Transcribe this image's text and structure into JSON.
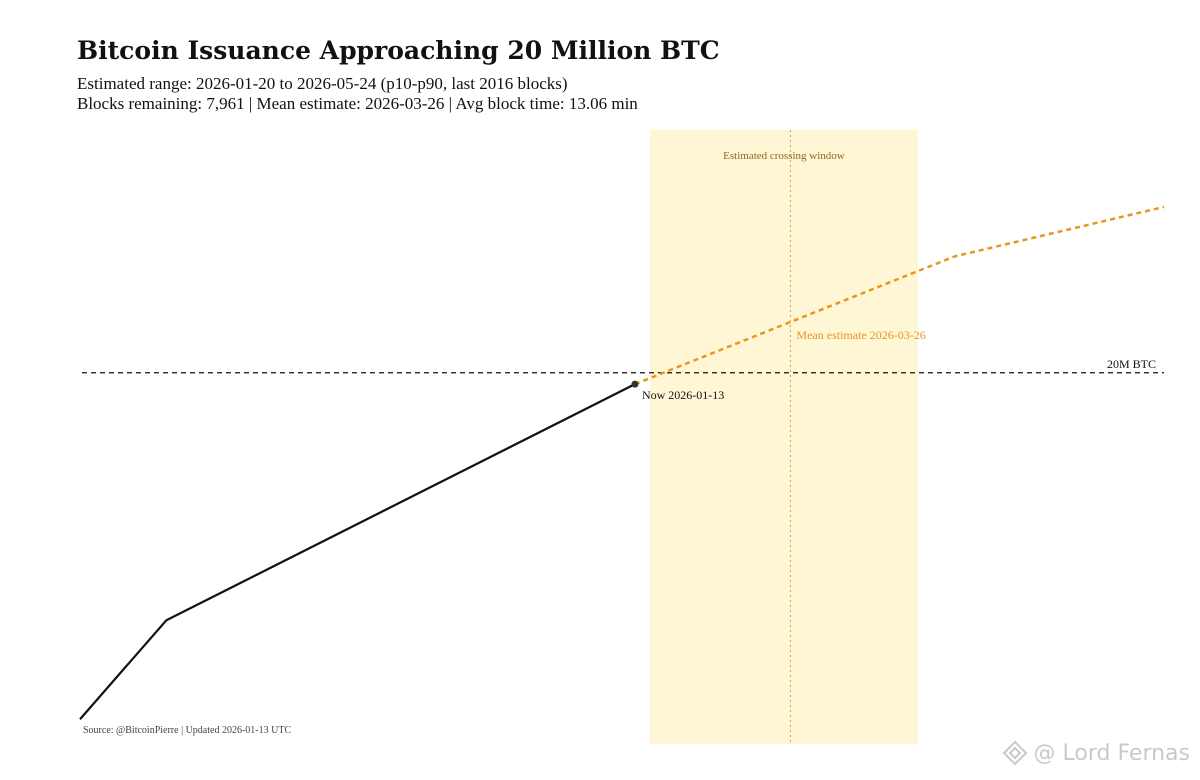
{
  "title": "Bitcoin Issuance Approaching 20 Million BTC",
  "subtitle_1": "Estimated range: 2026-01-20 to 2026-05-24 (p10-p90, last 2016 blocks)",
  "subtitle_2": "Blocks remaining: 7,961 | Mean estimate: 2026-03-26 | Avg block time: 13.06 min",
  "source": "Source: @BitcoinPierre | Updated 2026-01-13 UTC",
  "watermark": "@ Lord Fernas",
  "colors": {
    "history": "#111111",
    "projection": "#e8961c",
    "window_fill": "#fff6d6",
    "window_line": "#e0a84a",
    "threshold": "#111111",
    "window_label": "#8a6a1a",
    "mean_label": "#e8961c"
  },
  "chart_data": {
    "type": "line",
    "title": "Bitcoin Issuance Approaching 20 Million BTC",
    "xlabel": "",
    "ylabel": "",
    "grid": false,
    "axes_visible": false,
    "x_range": [
      "2025-05-01",
      "2026-09-15"
    ],
    "y_range": [
      19.85,
      20.09
    ],
    "series": [
      {
        "role": "history",
        "style": "solid",
        "points": [
          {
            "x": "2025-05-01",
            "y": 19.86
          },
          {
            "x": "2025-06-10",
            "y": 19.9
          },
          {
            "x": "2026-01-13",
            "y": 19.9954
          }
        ]
      },
      {
        "role": "projection",
        "style": "dashed",
        "points": [
          {
            "x": "2026-01-13",
            "y": 19.9954
          },
          {
            "x": "2026-06-10",
            "y": 20.047
          },
          {
            "x": "2026-09-15",
            "y": 20.067
          }
        ]
      }
    ],
    "threshold": {
      "y": 20.0,
      "label": "20M BTC",
      "style": "dashed"
    },
    "crossing_window": {
      "start": "2026-01-20",
      "end": "2026-05-24",
      "label": "Estimated crossing window"
    },
    "mean_estimate": {
      "x": "2026-03-26",
      "label": "Mean estimate 2026-03-26"
    },
    "now_marker": {
      "x": "2026-01-13",
      "y": 19.9954,
      "label": "Now 2026-01-13"
    }
  }
}
